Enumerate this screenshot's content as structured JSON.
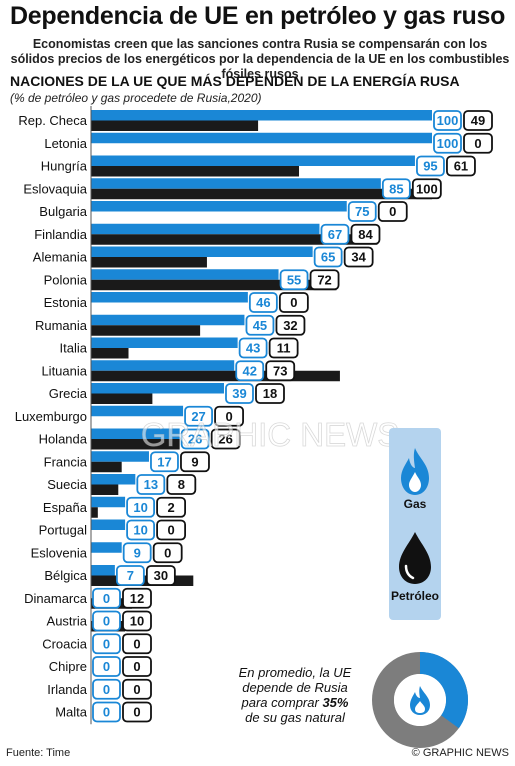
{
  "header": {
    "title": "Dependencia de UE en petróleo y gas ruso",
    "subtitle": "Economistas creen que las sanciones contra Rusia se compensarán con los sólidos precios de los energéticos por la dependencia de la UE en los combustibles fósiles rusos",
    "heading": "NACIONES DE LA UE QUE MÁS DEPENDEN  DE LA ENERGÍA RUSA",
    "note": "(% de petróleo y gas  procedete de Rusia,2020)"
  },
  "legend": {
    "gas": "Gas",
    "oil": "Petróleo"
  },
  "colors": {
    "gas": "#1a87d6",
    "oil": "#1a1a1a",
    "panel": "#b4d3ee",
    "donut_rest": "#7d7d7d"
  },
  "average": {
    "line1": "En promedio, la UE",
    "line2": "depende de Rusia",
    "line3_pre": "para comprar ",
    "value_text": "35%",
    "line4": "de su gas natural",
    "value": 35
  },
  "footer": {
    "source": "Fuente: Time",
    "credit": "© GRAPHIC NEWS"
  },
  "watermark": "GRAPHIC NEWS",
  "chart_data": {
    "type": "bar",
    "orientation": "horizontal",
    "xlim": [
      0,
      100
    ],
    "categories": [
      "Rep. Checa",
      "Letonia",
      "Hungría",
      "Eslovaquia",
      "Bulgaria",
      "Finlandia",
      "Alemania",
      "Polonia",
      "Estonia",
      "Rumania",
      "Italia",
      "Lituania",
      "Grecia",
      "Luxemburgo",
      "Holanda",
      "Francia",
      "Suecia",
      "España",
      "Portugal",
      "Eslovenia",
      "Bélgica",
      "Dinamarca",
      "Austria",
      "Croacia",
      "Chipre",
      "Irlanda",
      "Malta"
    ],
    "series": [
      {
        "name": "Gas",
        "values": [
          100,
          100,
          95,
          85,
          75,
          67,
          65,
          55,
          46,
          45,
          43,
          42,
          39,
          27,
          26,
          17,
          13,
          10,
          10,
          9,
          7,
          0,
          0,
          0,
          0,
          0,
          0
        ]
      },
      {
        "name": "Petróleo",
        "values": [
          49,
          0,
          61,
          100,
          0,
          84,
          34,
          72,
          0,
          32,
          11,
          73,
          18,
          0,
          26,
          9,
          8,
          2,
          0,
          0,
          30,
          12,
          10,
          0,
          0,
          0,
          0
        ]
      }
    ]
  }
}
